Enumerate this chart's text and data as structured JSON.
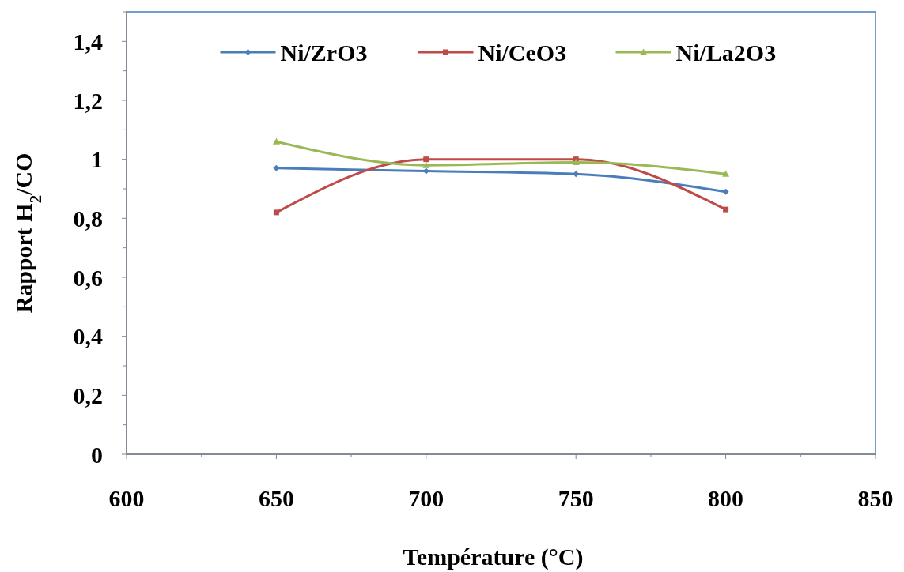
{
  "chart_data": {
    "type": "line",
    "xlabel": "Température (°C)",
    "ylabel": "Rapport H$_{2}$/CO",
    "x": [
      650,
      700,
      750,
      800
    ],
    "series": [
      {
        "name": "Ni/ZrO3",
        "color": "#4a7ebb",
        "marker": "diamond",
        "values": [
          0.97,
          0.96,
          0.95,
          0.89
        ]
      },
      {
        "name": "Ni/CeO3",
        "color": "#be4b48",
        "marker": "square",
        "values": [
          0.82,
          1.0,
          1.0,
          0.83
        ]
      },
      {
        "name": "Ni/La2O3",
        "color": "#98b954",
        "marker": "triangle",
        "values": [
          1.06,
          0.98,
          0.99,
          0.95
        ]
      }
    ],
    "xlim": [
      600,
      850
    ],
    "xticks": [
      600,
      650,
      700,
      750,
      800,
      850
    ],
    "ylim": [
      0,
      1.5
    ],
    "yticks": [
      0,
      {
        "value": 0.2,
        "label": "0,2"
      },
      {
        "value": 0.4,
        "label": "0,4"
      },
      {
        "value": 0.6,
        "label": "0,6"
      },
      {
        "value": 0.8,
        "label": "0,8"
      },
      1,
      {
        "value": 1.2,
        "label": "1,2"
      },
      {
        "value": 1.4,
        "label": "1,4"
      }
    ],
    "grid": false,
    "legend": "top",
    "line_style": "solid"
  }
}
